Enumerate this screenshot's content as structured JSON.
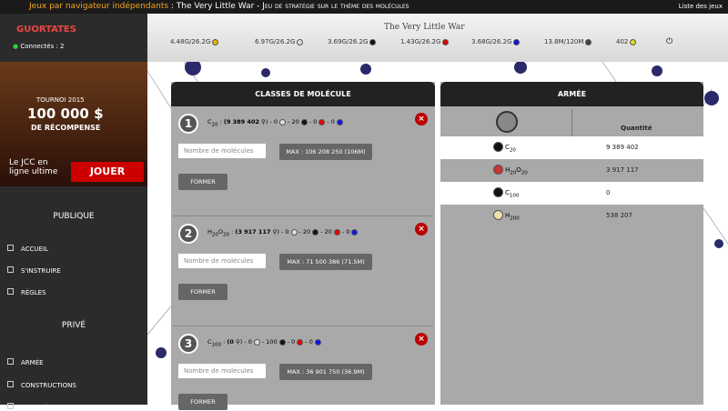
{
  "topbar": {
    "site": "Jeux par navigateur indépendants",
    "game": "The Very Little War",
    "tagline": "Jeu de stratégie sur le thème des molécules",
    "games_list": "Liste des jeux"
  },
  "user": {
    "name": "GUORTATES",
    "online": "Connectés : 2"
  },
  "logo": "The Very Little War",
  "ad": {
    "tournament": "TOURNOI 2015",
    "prize": "100 000 $",
    "reward": "DE RÉCOMPENSE",
    "slogan": "Le JCC en ligne ultime",
    "cta": "JOUER"
  },
  "nav": [
    {
      "title": "PUBLIQUE",
      "items": [
        "ACCUEIL",
        "S'INSTRUIRE",
        "RÈGLES"
      ]
    },
    {
      "title": "PRIVÉ",
      "items": [
        "ARMÉE",
        "CONSTRUCTIONS",
        "MARCHÉ"
      ]
    }
  ],
  "resources": [
    {
      "text": "4.48G/26.2G",
      "color": "#e8b400"
    },
    {
      "text": "6.97G/26.2G",
      "color": "#dddddd"
    },
    {
      "text": "3.69G/26.2G",
      "color": "#111111"
    },
    {
      "text": "1.43G/26.2G",
      "color": "#e00000"
    },
    {
      "text": "3.68G/26.2G",
      "color": "#1010e0"
    },
    {
      "text": "13.8M/120M",
      "color": "#444444"
    },
    {
      "text": "402",
      "color": "#d8e020"
    }
  ],
  "classes": {
    "title": "CLASSES DE MOLÉCULE",
    "placeholder": "Nombre de molécules",
    "form": "FORMER",
    "items": [
      {
        "num": "1",
        "el": "C",
        "sub": "20",
        "qty": "(9 389 402",
        "atoms": [
          "0",
          "20",
          "0",
          "0"
        ],
        "max": "MAX : 106 208 250 (106M)"
      },
      {
        "num": "2",
        "el": "H",
        "sub": "20",
        "el2": "O",
        "sub2": "20",
        "qty": "(3 917 117",
        "atoms": [
          "0",
          "20",
          "20",
          "0"
        ],
        "max": "MAX : 71 500 386 (71.5M)"
      },
      {
        "num": "3",
        "el": "C",
        "sub": "100",
        "qty": "(0",
        "atoms": [
          "0",
          "100",
          "0",
          "0"
        ],
        "max": "MAX : 36 901 750 (36.9M)"
      }
    ]
  },
  "army": {
    "title": "ARMÉE",
    "quantity": "Quantité",
    "rows": [
      {
        "el": "C",
        "sub": "20",
        "value": "9 389 402",
        "color": "#111"
      },
      {
        "el": "H",
        "sub": "20",
        "el2": "O",
        "sub2": "20",
        "value": "3 917 117",
        "color": "#c33"
      },
      {
        "el": "C",
        "sub": "100",
        "value": "0",
        "color": "#111"
      },
      {
        "el": "H",
        "sub": "200",
        "value": "538 207",
        "color": "#f0e0b0"
      }
    ]
  }
}
